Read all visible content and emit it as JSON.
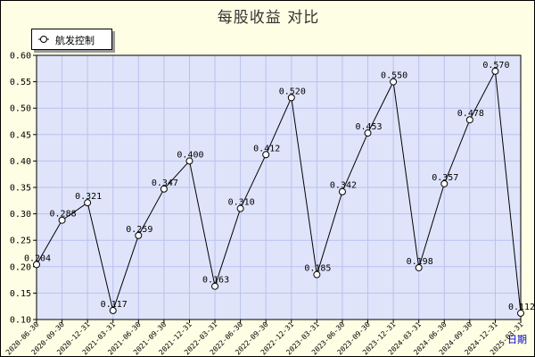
{
  "title": "每股收益 对比",
  "colors": {
    "background": "#fefee4",
    "plot": "#dfe4fa",
    "grid": "#b9c2ef",
    "line": "#000000",
    "marker_fill": "#ffffff",
    "x_axis_label": "#0000cc"
  },
  "chart_data": {
    "type": "line",
    "title": "每股收益 对比",
    "xlabel": "日期",
    "ylabel": "",
    "ylim": [
      0.1,
      0.6
    ],
    "yticks": [
      "0.10",
      "0.15",
      "0.20",
      "0.25",
      "0.30",
      "0.35",
      "0.40",
      "0.45",
      "0.50",
      "0.55",
      "0.60"
    ],
    "legend": "top-left",
    "grid": true,
    "categories": [
      "2020-06-30",
      "2020-09-30",
      "2020-12-31",
      "2021-03-31",
      "2021-06-30",
      "2021-09-30",
      "2021-12-31",
      "2022-03-31",
      "2022-06-30",
      "2022-09-30",
      "2022-12-31",
      "2023-03-31",
      "2023-06-30",
      "2023-09-30",
      "2023-12-31",
      "2024-03-31",
      "2024-06-30",
      "2024-09-30",
      "2024-12-31",
      "2025-03-31"
    ],
    "series": [
      {
        "name": "航发控制",
        "values": [
          0.204,
          0.288,
          0.321,
          0.117,
          0.259,
          0.347,
          0.4,
          0.163,
          0.31,
          0.412,
          0.52,
          0.185,
          0.342,
          0.453,
          0.55,
          0.198,
          0.357,
          0.478,
          0.57,
          0.112
        ]
      }
    ]
  }
}
